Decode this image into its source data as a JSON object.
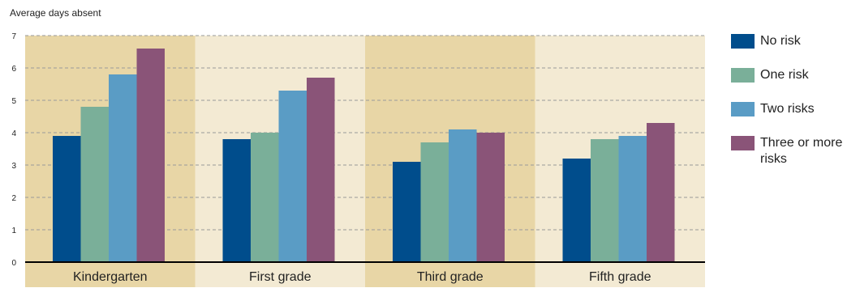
{
  "chart_data": {
    "type": "bar",
    "ylabel": "Average days absent",
    "xlabel": "",
    "ylim": [
      0,
      7
    ],
    "yticks": [
      0,
      1,
      2,
      3,
      4,
      5,
      6,
      7
    ],
    "grid": true,
    "legend_position": "right",
    "categories": [
      "Kindergarten",
      "First grade",
      "Third grade",
      "Fifth grade"
    ],
    "series": [
      {
        "name": "No risk",
        "color": "#004d8c",
        "values": [
          3.9,
          3.8,
          3.1,
          3.2
        ]
      },
      {
        "name": "One risk",
        "color": "#7aaf99",
        "values": [
          4.8,
          4.0,
          3.7,
          3.8
        ]
      },
      {
        "name": "Two risks",
        "color": "#5a9cc5",
        "values": [
          5.8,
          5.3,
          4.1,
          3.9
        ]
      },
      {
        "name": "Three or more risks",
        "color": "#8a5478",
        "values": [
          6.6,
          5.7,
          4.0,
          4.3
        ]
      }
    ],
    "band_colors": [
      "#e8d6a6",
      "#f3ead3"
    ]
  }
}
